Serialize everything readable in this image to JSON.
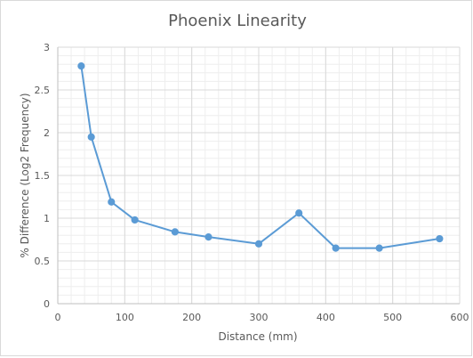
{
  "chart_data": {
    "type": "line",
    "title": "Phoenix Linearity",
    "xlabel": "Distance (mm)",
    "ylabel": "% Difference (Log2 Frequency)",
    "xlim": [
      0,
      600
    ],
    "ylim": [
      0,
      3
    ],
    "xticks": [
      0,
      100,
      200,
      300,
      400,
      500,
      600
    ],
    "yticks": [
      0,
      0.5,
      1,
      1.5,
      2,
      2.5,
      3
    ],
    "xtick_labels": [
      "0",
      "100",
      "200",
      "300",
      "400",
      "500",
      "600"
    ],
    "ytick_labels": [
      "0",
      "0.5",
      "1",
      "1.5",
      "2",
      "2.5",
      "3"
    ],
    "grid": "major and minor (x and y)",
    "legend": "none",
    "series": [
      {
        "color": "#5b9bd5",
        "marker": "circle",
        "x": [
          35,
          50,
          80,
          115,
          175,
          225,
          300,
          360,
          415,
          480,
          570
        ],
        "y": [
          2.78,
          1.95,
          1.19,
          0.98,
          0.84,
          0.78,
          0.7,
          1.06,
          0.65,
          0.65,
          0.76
        ]
      }
    ]
  },
  "colors": {
    "grid_major": "#d9d9d9",
    "grid_minor": "#eeeeee",
    "text": "#595959"
  }
}
